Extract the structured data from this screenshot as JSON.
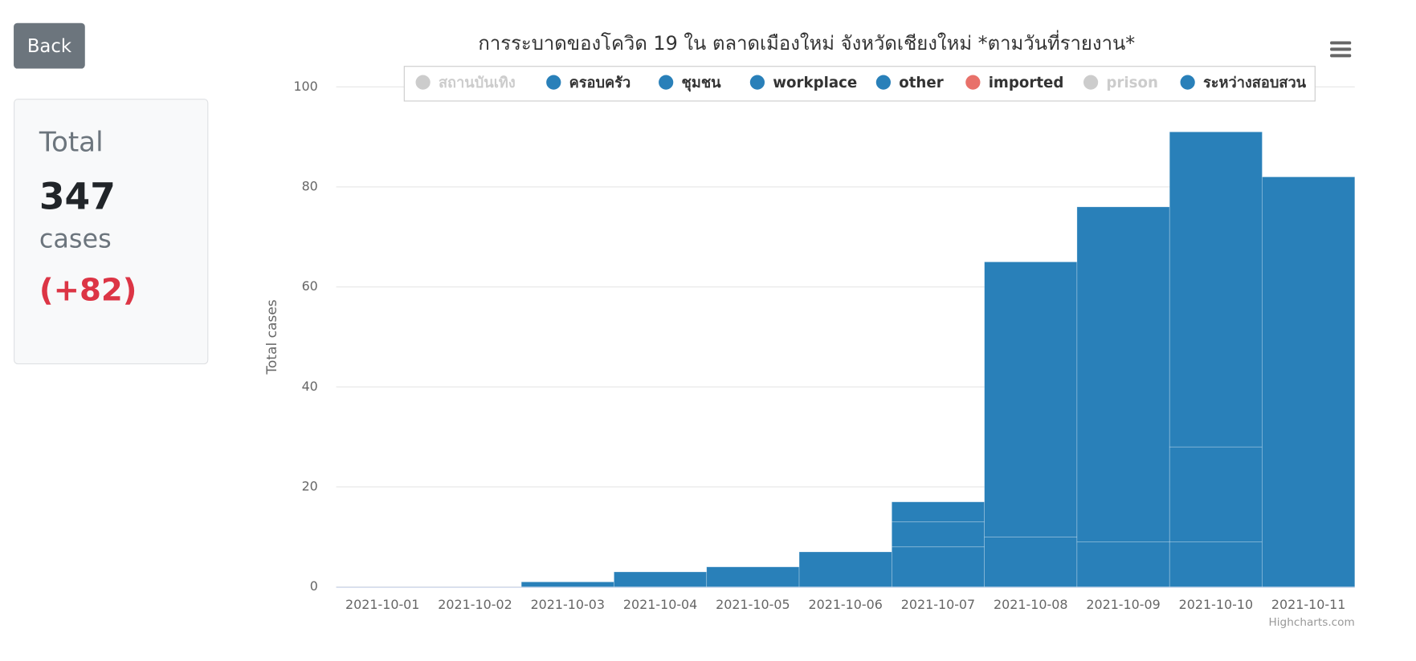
{
  "back_button": "Back",
  "summary": {
    "title": "Total",
    "count": "347",
    "unit": "cases",
    "change": "(+82)"
  },
  "chart_data": {
    "type": "bar",
    "stacked": true,
    "title": "การระบาดของโควิด 19 ใน ตลาดเมืองใหม่ จังหวัดเชียงใหม่ *ตามวันที่รายงาน*",
    "y_label": "Total cases",
    "credits": "Highcharts.com",
    "categories": [
      "2021-10-01",
      "2021-10-02",
      "2021-10-03",
      "2021-10-04",
      "2021-10-05",
      "2021-10-06",
      "2021-10-07",
      "2021-10-08",
      "2021-10-09",
      "2021-10-10",
      "2021-10-11"
    ],
    "series": [
      {
        "name": "สถานบันเทิง",
        "color": "#2980b9",
        "visible": false
      },
      {
        "name": "ครอบครัว",
        "color": "#2980b9",
        "values": [
          0,
          0,
          0,
          0,
          0,
          0,
          8,
          10,
          9,
          9,
          0
        ]
      },
      {
        "name": "ชุมชน",
        "color": "#2980b9",
        "values": [
          0,
          0,
          0,
          0,
          0,
          0,
          5,
          0,
          0,
          19,
          0
        ]
      },
      {
        "name": "workplace",
        "color": "#2980b9",
        "values": [
          0,
          0,
          0,
          0,
          0,
          0,
          0,
          0,
          0,
          0,
          0
        ]
      },
      {
        "name": "other",
        "color": "#2980b9",
        "values": [
          0,
          0,
          1,
          3,
          4,
          7,
          4,
          55,
          67,
          63,
          82
        ]
      },
      {
        "name": "imported",
        "color": "#e8716a",
        "values": [
          0,
          0,
          0,
          0,
          0,
          0,
          0,
          0,
          0,
          0,
          0
        ]
      },
      {
        "name": "prison",
        "color": "#2980b9",
        "visible": false
      },
      {
        "name": "ระหว่างสอบสวน",
        "color": "#2980b9",
        "values": [
          0,
          0,
          0,
          0,
          0,
          0,
          0,
          0,
          0,
          0,
          0
        ]
      }
    ],
    "ylim": [
      0,
      100
    ],
    "yticks": [
      0,
      20,
      40,
      60,
      80,
      100
    ],
    "grid": true
  }
}
